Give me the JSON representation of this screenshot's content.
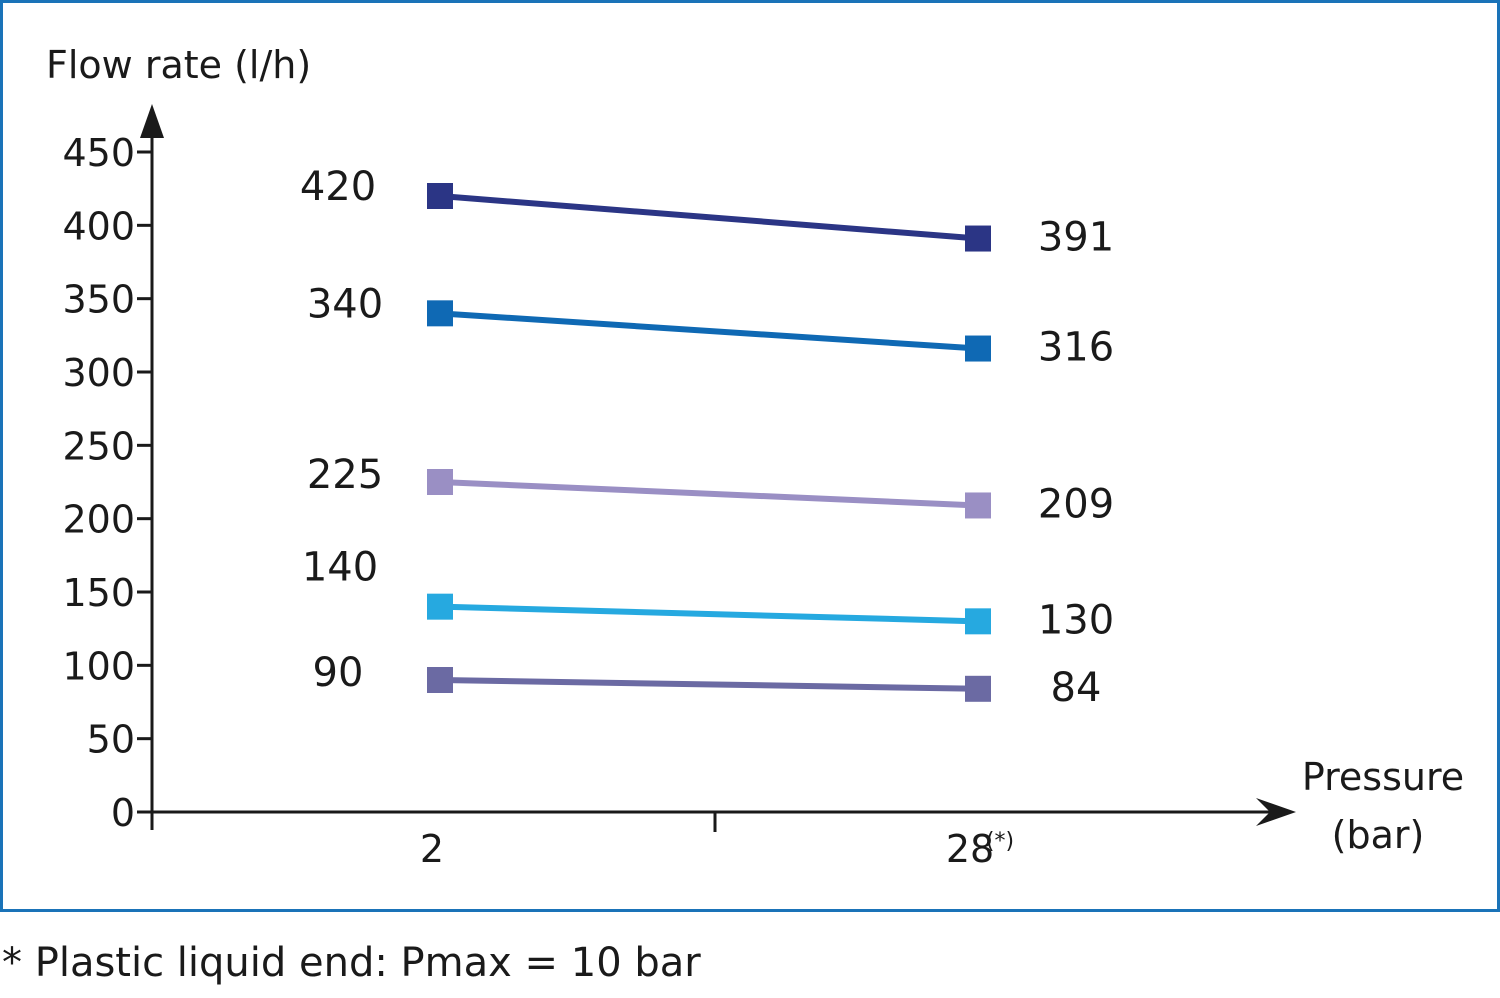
{
  "chart_data": {
    "type": "line",
    "ylabel": "Flow rate (l/h)",
    "xlabel_line1": "Pressure",
    "xlabel_line2": "(bar)",
    "x_categories": [
      {
        "label": "2",
        "sup": ""
      },
      {
        "label": "28",
        "sup": "(*)"
      }
    ],
    "ylim": [
      0,
      450
    ],
    "yticks": [
      0,
      50,
      100,
      150,
      200,
      250,
      300,
      350,
      400,
      450
    ],
    "grid": false,
    "series": [
      {
        "values": [
          420,
          391
        ],
        "labels": [
          "420",
          "391"
        ],
        "color": "#2b3585"
      },
      {
        "values": [
          340,
          316
        ],
        "labels": [
          "340",
          "316"
        ],
        "color": "#0f69b4"
      },
      {
        "values": [
          225,
          209
        ],
        "labels": [
          "225",
          "209"
        ],
        "color": "#9a8fc4"
      },
      {
        "values": [
          140,
          130
        ],
        "labels": [
          "140",
          "130"
        ],
        "color": "#26a9e0"
      },
      {
        "values": [
          90,
          84
        ],
        "labels": [
          "90",
          "84"
        ],
        "color": "#6b6aa3"
      }
    ]
  },
  "footnote": "* Plastic liquid end: Pmax = 10 bar",
  "colors": {
    "frame": "#1a73b8",
    "axis": "#1a1a1a"
  }
}
